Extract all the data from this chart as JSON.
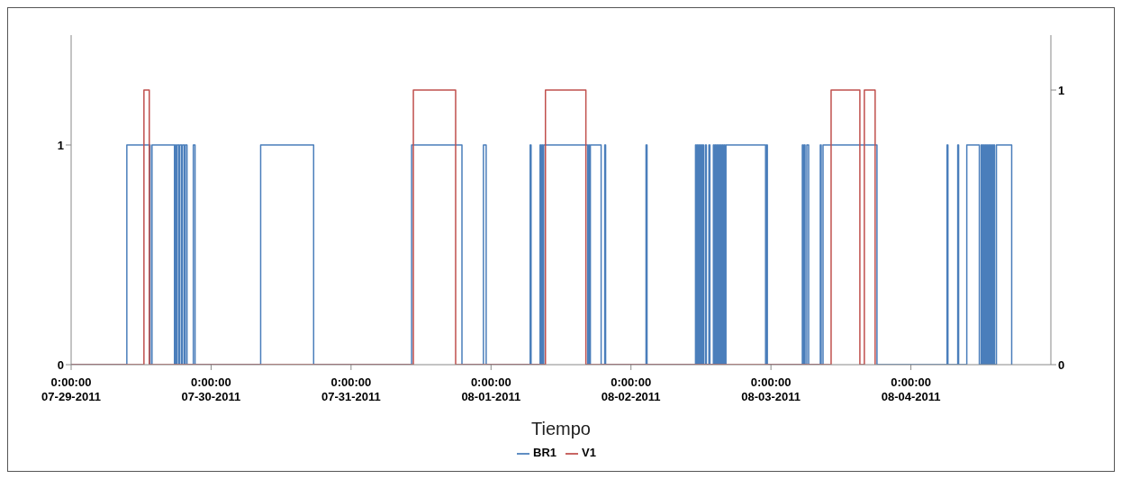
{
  "chart_data": {
    "type": "step",
    "xlabel": "Tiempo",
    "legend": "bottom",
    "xlim": [
      "2011-07-29",
      "2011-08-05"
    ],
    "xticks": [
      {
        "value": "2011-07-29",
        "label": "0:00:00\n07-29-2011"
      },
      {
        "value": "2011-07-30",
        "label": "0:00:00\n07-30-2011"
      },
      {
        "value": "2011-07-31",
        "label": "0:00:00\n07-31-2011"
      },
      {
        "value": "2011-08-01",
        "label": "0:00:00\n08-01-2011"
      },
      {
        "value": "2011-08-02",
        "label": "0:00:00\n08-02-2011"
      },
      {
        "value": "2011-08-03",
        "label": "0:00:00\n08-03-2011"
      },
      {
        "value": "2011-08-04",
        "label": "0:00:00\n08-04-2011"
      }
    ],
    "ylim": [
      0,
      1.5
    ],
    "yticks": [
      0,
      1
    ],
    "y2lim": [
      0,
      1.2
    ],
    "y2ticks": [
      0,
      1
    ],
    "series": [
      {
        "name": "BR1",
        "color": "#4a7ebb",
        "axis": "y",
        "x": [
          "2011-07-29T00:00",
          "2011-07-29T09:33",
          "2011-07-29T13:33",
          "2011-07-29T13:52",
          "2011-07-29T17:43",
          "2011-07-29T17:52",
          "2011-07-29T18:01",
          "2011-07-29T18:11",
          "2011-07-29T18:29",
          "2011-07-29T18:38",
          "2011-07-29T18:57",
          "2011-07-29T19:06",
          "2011-07-29T19:25",
          "2011-07-29T19:34",
          "2011-07-29T19:52",
          "2011-07-29T20:57",
          "2011-07-29T21:15",
          "2011-07-30T08:30",
          "2011-07-30T17:35",
          "2011-07-31T10:23",
          "2011-07-31T19:01",
          "2011-07-31T22:42",
          "2011-07-31T23:10",
          "2011-08-01T06:43",
          "2011-08-01T06:52",
          "2011-08-01T08:25",
          "2011-08-01T08:34",
          "2011-08-01T08:43",
          "2011-08-01T08:52",
          "2011-08-01T09:02",
          "2011-08-01T16:34",
          "2011-08-01T16:44",
          "2011-08-01T16:53",
          "2011-08-01T17:02",
          "2011-08-01T18:53",
          "2011-08-01T19:30",
          "2011-08-01T19:39",
          "2011-08-02T02:35",
          "2011-08-02T02:45",
          "2011-08-02T11:04",
          "2011-08-02T11:13",
          "2011-08-02T11:22",
          "2011-08-02T11:32",
          "2011-08-02T11:41",
          "2011-08-02T11:50",
          "2011-08-02T11:59",
          "2011-08-02T12:09",
          "2011-08-02T12:18",
          "2011-08-02T12:27",
          "2011-08-02T12:46",
          "2011-08-02T12:55",
          "2011-08-02T13:22",
          "2011-08-02T13:32",
          "2011-08-02T14:08",
          "2011-08-02T14:17",
          "2011-08-02T14:26",
          "2011-08-02T14:36",
          "2011-08-02T14:45",
          "2011-08-02T14:54",
          "2011-08-02T15:03",
          "2011-08-02T15:13",
          "2011-08-02T15:22",
          "2011-08-02T15:31",
          "2011-08-02T15:40",
          "2011-08-02T15:50",
          "2011-08-02T15:59",
          "2011-08-02T16:08",
          "2011-08-02T16:17",
          "2011-08-02T23:05",
          "2011-08-02T23:14",
          "2011-08-02T23:23",
          "2011-08-03T05:23",
          "2011-08-03T05:32",
          "2011-08-03T05:42",
          "2011-08-03T05:51",
          "2011-08-03T06:09",
          "2011-08-03T06:28",
          "2011-08-03T08:28",
          "2011-08-03T08:37",
          "2011-08-03T08:56",
          "2011-08-03T18:11",
          "2011-08-04T06:12",
          "2011-08-04T06:21",
          "2011-08-04T08:02",
          "2011-08-04T08:11",
          "2011-08-04T09:35",
          "2011-08-04T11:44",
          "2011-08-04T12:03",
          "2011-08-04T12:12",
          "2011-08-04T12:21",
          "2011-08-04T12:30",
          "2011-08-04T12:40",
          "2011-08-04T12:49",
          "2011-08-04T12:58",
          "2011-08-04T13:07",
          "2011-08-04T13:17",
          "2011-08-04T13:26",
          "2011-08-04T13:35",
          "2011-08-04T13:44",
          "2011-08-04T13:54",
          "2011-08-04T14:03",
          "2011-08-04T14:12",
          "2011-08-04T14:21",
          "2011-08-04T14:40",
          "2011-08-04T17:17"
        ],
        "values": [
          0,
          1,
          0,
          1,
          0,
          1,
          0,
          1,
          0,
          1,
          0,
          1,
          0,
          1,
          0,
          1,
          0,
          1,
          0,
          1,
          0,
          1,
          0,
          1,
          0,
          1,
          0,
          1,
          0,
          1,
          0,
          1,
          0,
          1,
          0,
          1,
          0,
          1,
          0,
          1,
          0,
          1,
          0,
          1,
          0,
          1,
          0,
          1,
          0,
          1,
          0,
          1,
          0,
          1,
          0,
          1,
          0,
          1,
          0,
          1,
          0,
          1,
          0,
          1,
          0,
          1,
          0,
          1,
          0,
          1,
          0,
          1,
          0,
          1,
          0,
          1,
          0,
          1,
          0,
          1,
          0,
          1,
          0,
          1,
          0,
          1,
          0,
          1,
          0,
          1,
          0,
          1,
          0,
          1,
          0,
          1,
          0,
          1,
          0,
          1,
          0,
          1,
          0,
          1,
          0
        ]
      },
      {
        "name": "V1",
        "color": "#c0504d",
        "axis": "y2",
        "x": [
          "2011-07-29T00:00",
          "2011-07-29T12:29",
          "2011-07-29T13:24",
          "2011-07-31T10:41",
          "2011-07-31T17:56",
          "2011-08-01T09:20",
          "2011-08-01T16:16",
          "2011-08-03T10:19",
          "2011-08-03T15:15",
          "2011-08-03T16:01",
          "2011-08-03T17:52"
        ],
        "values": [
          0,
          1,
          0,
          1,
          0,
          1,
          0,
          1,
          0,
          1,
          0
        ]
      }
    ]
  }
}
